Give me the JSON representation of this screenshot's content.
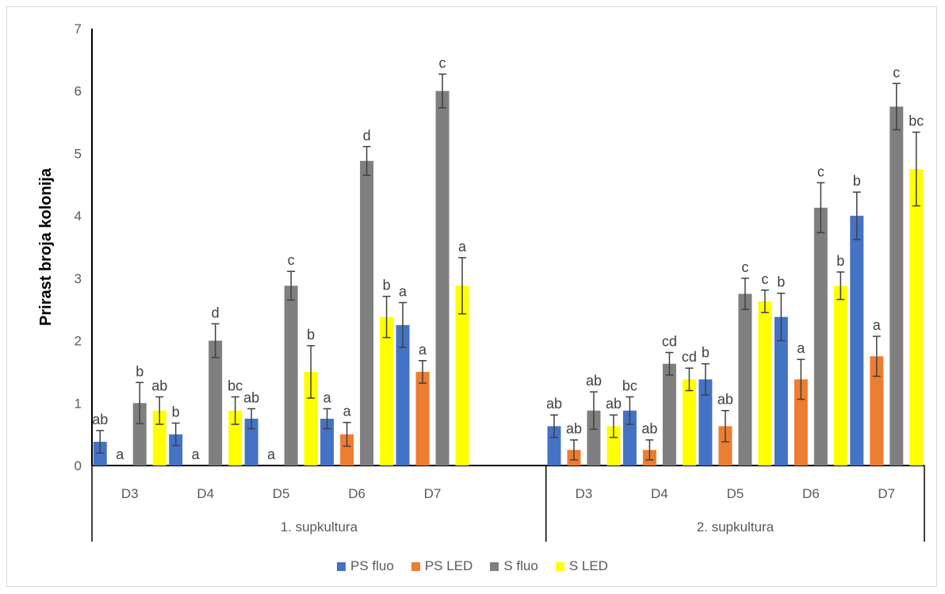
{
  "chart_data": {
    "type": "bar",
    "ylabel": "Prirast broja kolonija",
    "ylim": [
      0,
      7
    ],
    "yticks": [
      "0",
      "1",
      "2",
      "3",
      "4",
      "5",
      "6",
      "7"
    ],
    "groups": [
      {
        "label": "1. supkultura",
        "categories": [
          "D3",
          "D4",
          "D5",
          "D6",
          "D7"
        ],
        "series": [
          {
            "name": "PS fluo",
            "color": "#4472C4",
            "values": [
              0.38,
              0.5,
              0.75,
              0.75,
              2.25
            ],
            "errors": [
              0.18,
              0.18,
              0.16,
              0.16,
              0.36
            ],
            "labels": [
              "ab",
              "b",
              "ab",
              "a",
              "a"
            ]
          },
          {
            "name": "PS LED",
            "color": "#ED7D31",
            "values": [
              0,
              0,
              0,
              0.5,
              1.5
            ],
            "errors": [
              0,
              0,
              0,
              0.19,
              0.18
            ],
            "labels": [
              "a",
              "a",
              "a",
              "a",
              "a"
            ]
          },
          {
            "name": "S fluo",
            "color": "#7F7F7F",
            "values": [
              1.0,
              2.0,
              2.88,
              4.88,
              6.0
            ],
            "errors": [
              0.33,
              0.27,
              0.23,
              0.23,
              0.27
            ],
            "labels": [
              "b",
              "d",
              "c",
              "d",
              "c"
            ]
          },
          {
            "name": "S LED",
            "color": "#FFFF00",
            "values": [
              0.88,
              0.88,
              1.5,
              2.38,
              2.88
            ],
            "errors": [
              0.22,
              0.22,
              0.42,
              0.33,
              0.45
            ],
            "labels": [
              "ab",
              "bc",
              "b",
              "b",
              "a"
            ]
          }
        ]
      },
      {
        "label": "2. supkultura",
        "categories": [
          "D3",
          "D4",
          "D5",
          "D6",
          "D7"
        ],
        "series": [
          {
            "name": "PS fluo",
            "color": "#4472C4",
            "values": [
              0.63,
              0.88,
              1.38,
              2.38,
              4.0
            ],
            "errors": [
              0.18,
              0.22,
              0.25,
              0.38,
              0.38
            ],
            "labels": [
              "ab",
              "bc",
              "b",
              "b",
              "b"
            ]
          },
          {
            "name": "PS LED",
            "color": "#ED7D31",
            "values": [
              0.25,
              0.25,
              0.63,
              1.38,
              1.75
            ],
            "errors": [
              0.16,
              0.16,
              0.25,
              0.32,
              0.32
            ],
            "labels": [
              "ab",
              "ab",
              "ab",
              "a",
              "a"
            ]
          },
          {
            "name": "S fluo",
            "color": "#7F7F7F",
            "values": [
              0.88,
              1.63,
              2.75,
              4.13,
              5.75
            ],
            "errors": [
              0.3,
              0.18,
              0.25,
              0.4,
              0.37
            ],
            "labels": [
              "ab",
              "cd",
              "c",
              "c",
              "c"
            ]
          },
          {
            "name": "S LED",
            "color": "#FFFF00",
            "values": [
              0.63,
              1.38,
              2.63,
              2.88,
              4.75
            ],
            "errors": [
              0.18,
              0.18,
              0.18,
              0.22,
              0.59
            ],
            "labels": [
              "ab",
              "cd",
              "c",
              "b",
              "bc"
            ]
          }
        ]
      }
    ],
    "legend": [
      {
        "name": "PS fluo",
        "color": "#4472C4"
      },
      {
        "name": "PS LED",
        "color": "#ED7D31"
      },
      {
        "name": "S fluo",
        "color": "#7F7F7F"
      },
      {
        "name": "S LED",
        "color": "#FFFF00"
      }
    ],
    "legend_position": "bottom",
    "grid": false
  }
}
